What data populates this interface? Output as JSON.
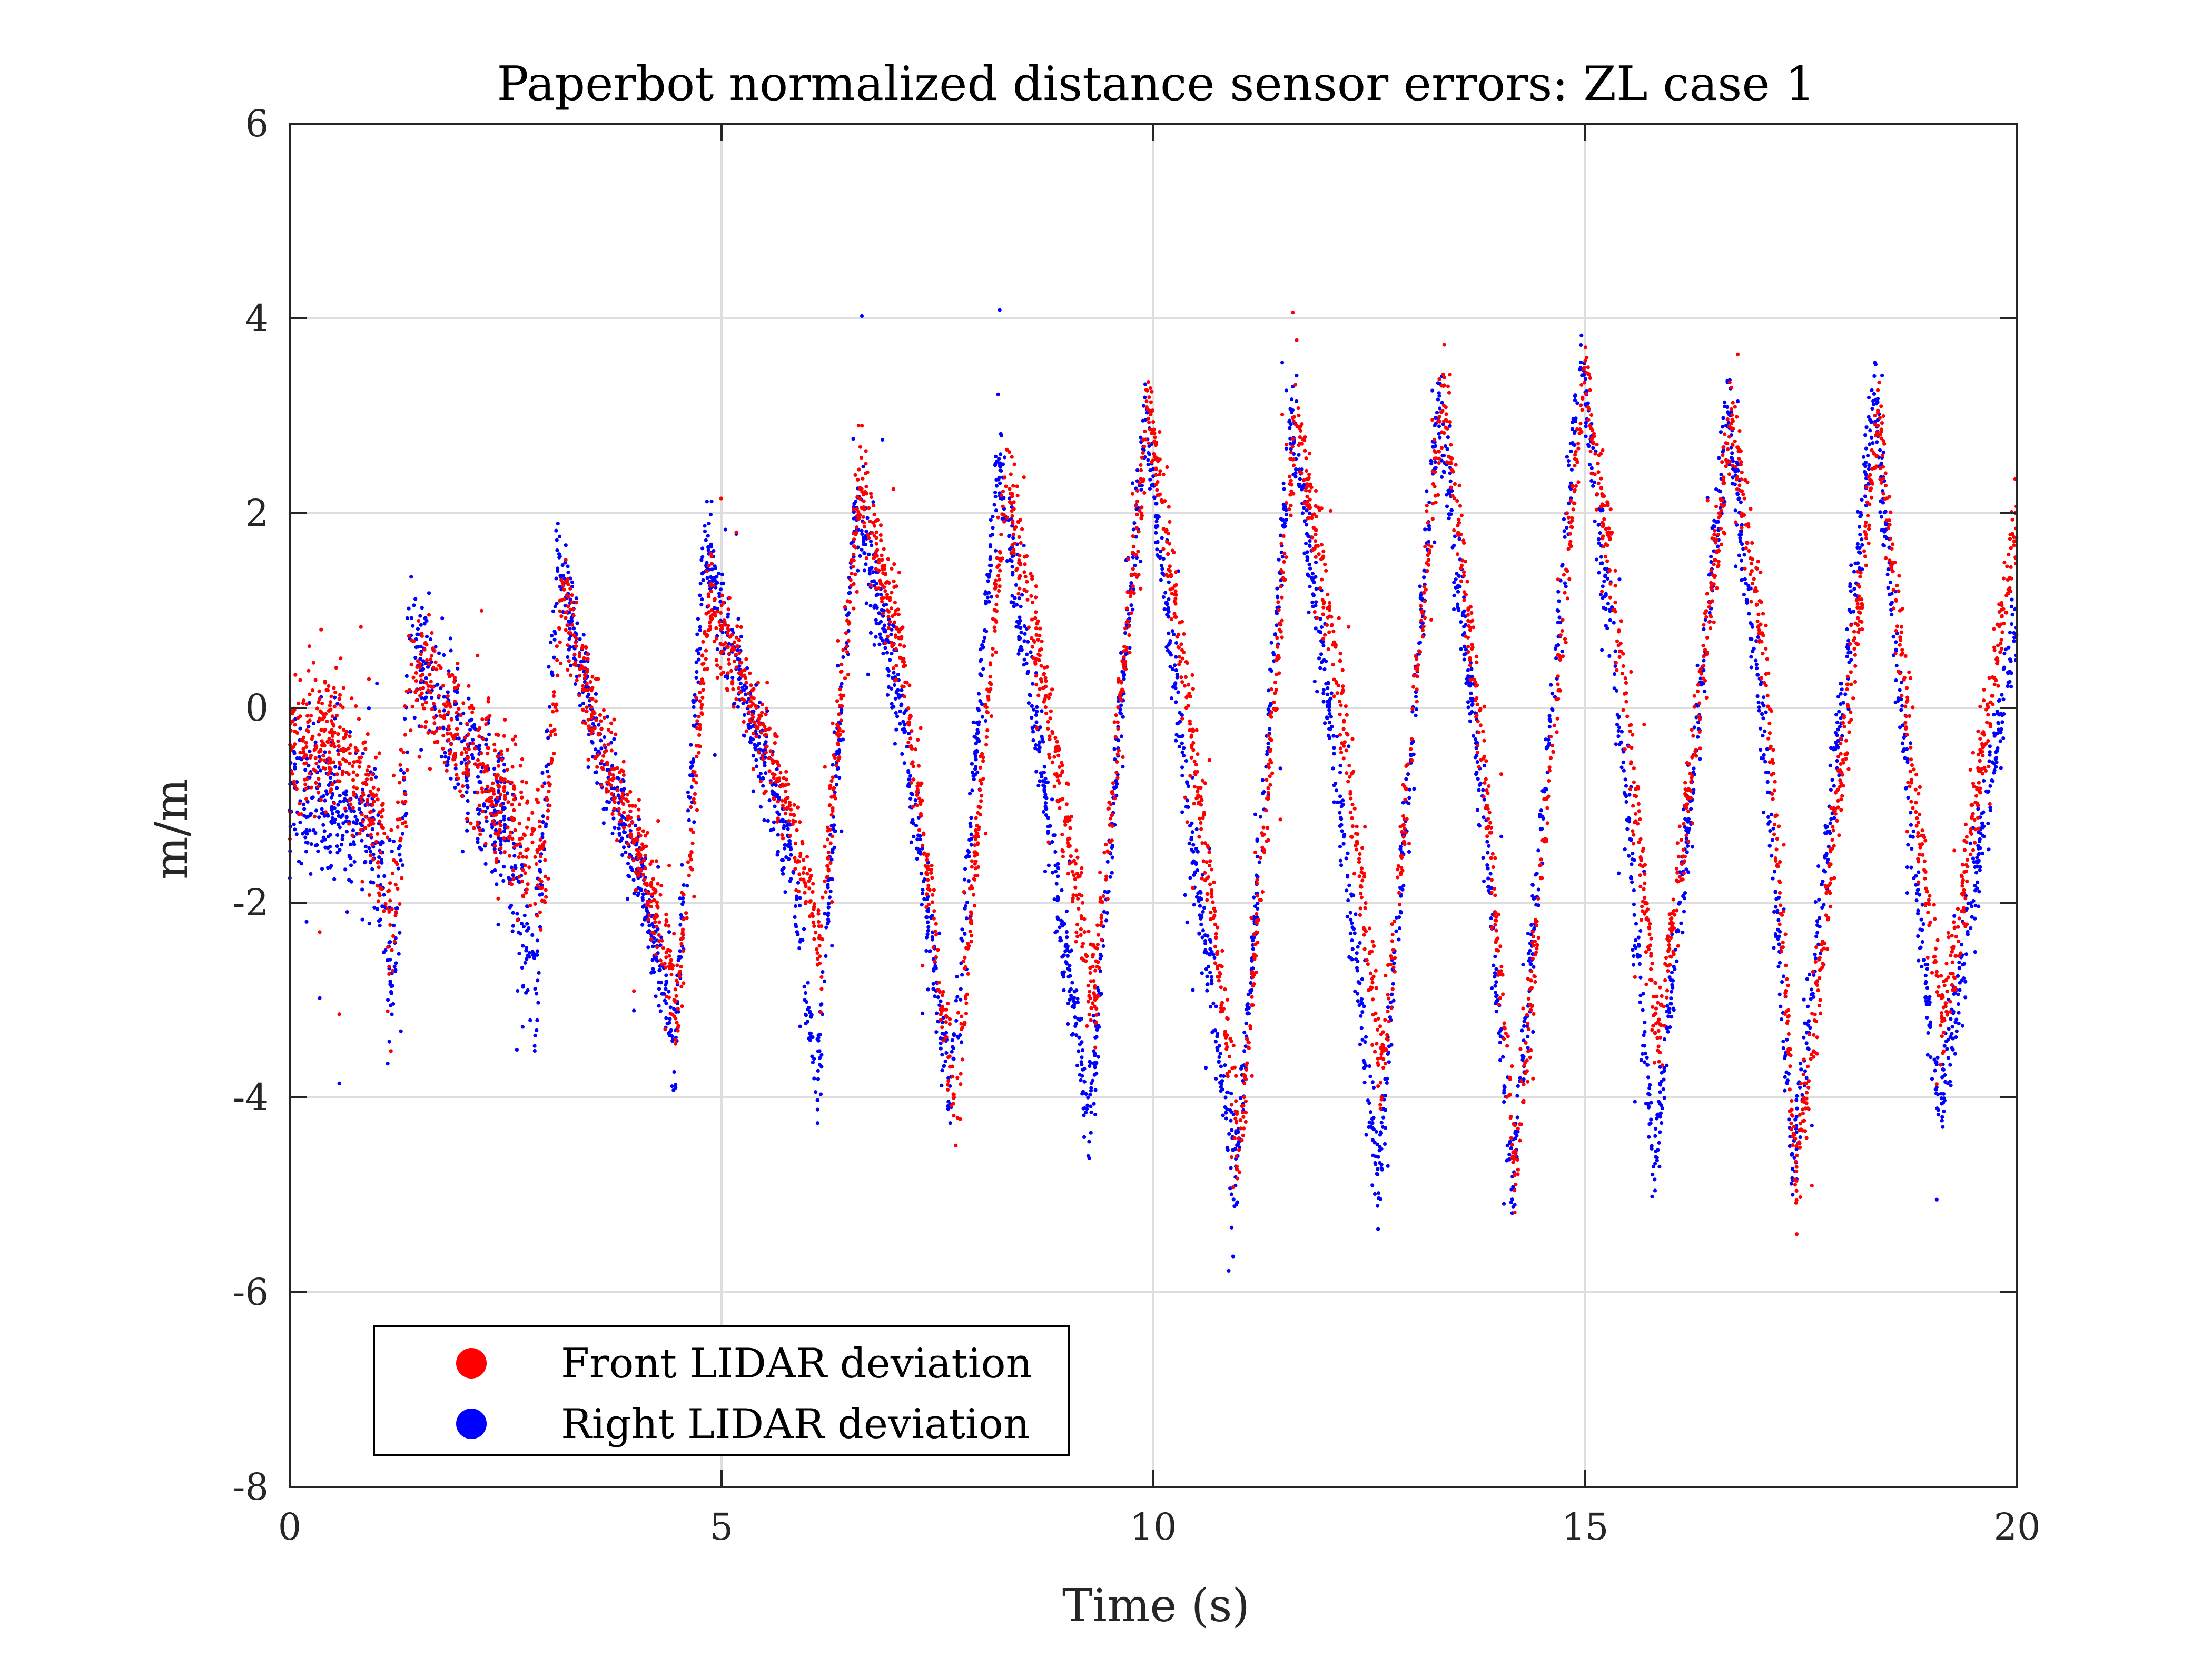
{
  "chart_data": {
    "type": "scatter",
    "title": "Paperbot normalized distance sensor errors: ZL case 1",
    "xlabel": "Time (s)",
    "ylabel": "m/m",
    "xlim": [
      0,
      20
    ],
    "ylim": [
      -8,
      6
    ],
    "xticks": [
      0,
      5,
      10,
      15,
      20
    ],
    "yticks": [
      -8,
      -6,
      -4,
      -2,
      0,
      2,
      4,
      6
    ],
    "x_tick_labels": [
      "0",
      "5",
      "10",
      "15",
      "20"
    ],
    "y_tick_labels": [
      "-8",
      "-6",
      "-4",
      "-2",
      "0",
      "2",
      "4",
      "6"
    ],
    "grid": true,
    "legend_position": "bottom-left",
    "series": [
      {
        "name": "Front LIDAR deviation",
        "color": "#ff0000",
        "t": [
          0.0,
          0.5,
          1.0,
          1.2,
          1.4,
          2.0,
          2.5,
          2.95,
          3.15,
          3.6,
          4.1,
          4.5,
          4.85,
          5.3,
          5.8,
          6.15,
          6.6,
          7.1,
          7.7,
          8.3,
          8.8,
          9.3,
          9.95,
          10.45,
          11.0,
          11.65,
          12.1,
          12.65,
          13.35,
          13.8,
          14.2,
          15.0,
          15.4,
          15.85,
          16.7,
          17.1,
          17.45,
          18.4,
          18.8,
          19.15,
          20.0
        ],
        "y": [
          -0.5,
          -0.2,
          -1.1,
          -2.1,
          0.4,
          -0.4,
          -0.9,
          -1.7,
          1.2,
          -0.3,
          -1.6,
          -3.0,
          1.0,
          0.2,
          -1.1,
          -2.4,
          2.4,
          0.5,
          -4.2,
          2.4,
          -0.1,
          -3.0,
          3.1,
          -0.3,
          -4.6,
          3.0,
          0.6,
          -3.7,
          3.3,
          -0.3,
          -4.8,
          3.5,
          0.7,
          -3.5,
          3.0,
          0.3,
          -4.9,
          3.0,
          -0.8,
          -3.2,
          2.0
        ]
      },
      {
        "name": "Right LIDAR deviation",
        "color": "#0000ff",
        "t": [
          0.0,
          0.5,
          1.0,
          1.2,
          1.4,
          2.0,
          2.5,
          2.85,
          3.1,
          3.6,
          4.1,
          4.45,
          4.8,
          5.3,
          5.8,
          6.1,
          6.55,
          7.1,
          7.65,
          8.2,
          8.8,
          9.25,
          9.9,
          10.4,
          10.95,
          11.6,
          12.1,
          12.6,
          13.3,
          13.8,
          14.15,
          14.95,
          15.4,
          15.8,
          16.65,
          17.1,
          17.4,
          18.35,
          18.8,
          19.1,
          20.0
        ],
        "y": [
          -0.9,
          -1.0,
          -1.3,
          -2.8,
          0.8,
          -0.5,
          -1.2,
          -2.9,
          1.6,
          -0.5,
          -1.8,
          -3.6,
          1.6,
          0.0,
          -1.5,
          -3.9,
          2.2,
          -0.2,
          -4.0,
          2.6,
          -1.2,
          -4.3,
          3.0,
          -1.0,
          -4.9,
          3.0,
          -0.5,
          -4.8,
          3.2,
          -0.9,
          -4.9,
          3.6,
          -0.2,
          -4.8,
          3.0,
          -0.6,
          -4.7,
          3.2,
          -1.5,
          -4.1,
          1.0
        ]
      }
    ]
  }
}
